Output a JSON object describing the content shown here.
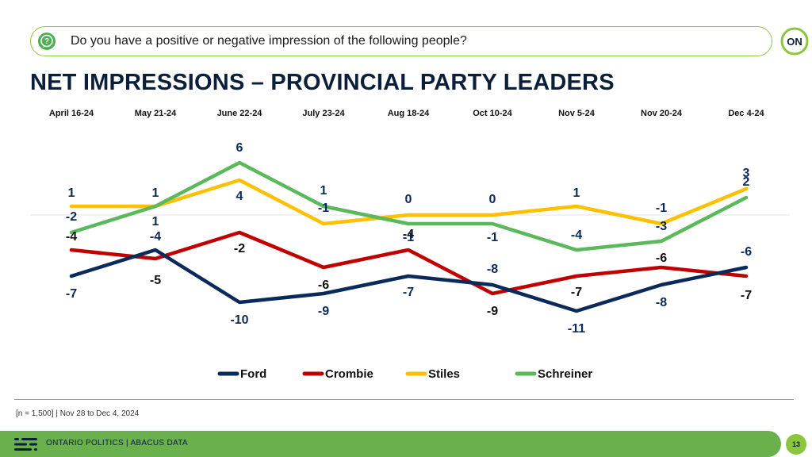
{
  "question": {
    "icon": "question-bubble-icon",
    "text": "Do you have a positive or negative impression of the following people?"
  },
  "brand": {
    "logo_text": "ON",
    "logo_icon": "on-logo-icon"
  },
  "page_title": "NET IMPRESSIONS – PROVINCIAL PARTY LEADERS",
  "chart_data": {
    "type": "line",
    "title": "",
    "categories": [
      "April 16-24",
      "May 21-24",
      "June 22-24",
      "July 23-24",
      "Aug 18-24",
      "Oct 10-24",
      "Nov 5-24",
      "Nov 20-24",
      "Dec 4-24"
    ],
    "series": [
      {
        "name": "Ford",
        "color": "#0b2a5c",
        "values": [
          -7,
          -4,
          -10,
          -9,
          -7,
          -8,
          -11,
          -8,
          -6
        ]
      },
      {
        "name": "Crombie",
        "color": "#c00000",
        "values": [
          -4,
          -5,
          -2,
          -6,
          -4,
          -9,
          -7,
          -6,
          -7
        ]
      },
      {
        "name": "Stiles",
        "color": "#ffc000",
        "values": [
          1,
          1,
          4,
          -1,
          0,
          0,
          1,
          -1,
          3
        ]
      },
      {
        "name": "Schreiner",
        "color": "#5cb85c",
        "values": [
          -2,
          1,
          6,
          1,
          -1,
          -1,
          -4,
          -3,
          2
        ]
      }
    ],
    "ylim": [
      -12,
      7
    ],
    "grid": false,
    "legend": "bottom"
  },
  "footnote": "[n = 1,500] | Nov 28 to Dec 4, 2024",
  "footer": {
    "text": "ONTARIO POLITICS  |  ABACUS DATA",
    "page_number": "13"
  },
  "colors": {
    "accent_green": "#6ab04c",
    "navy": "#0b1f3a"
  }
}
